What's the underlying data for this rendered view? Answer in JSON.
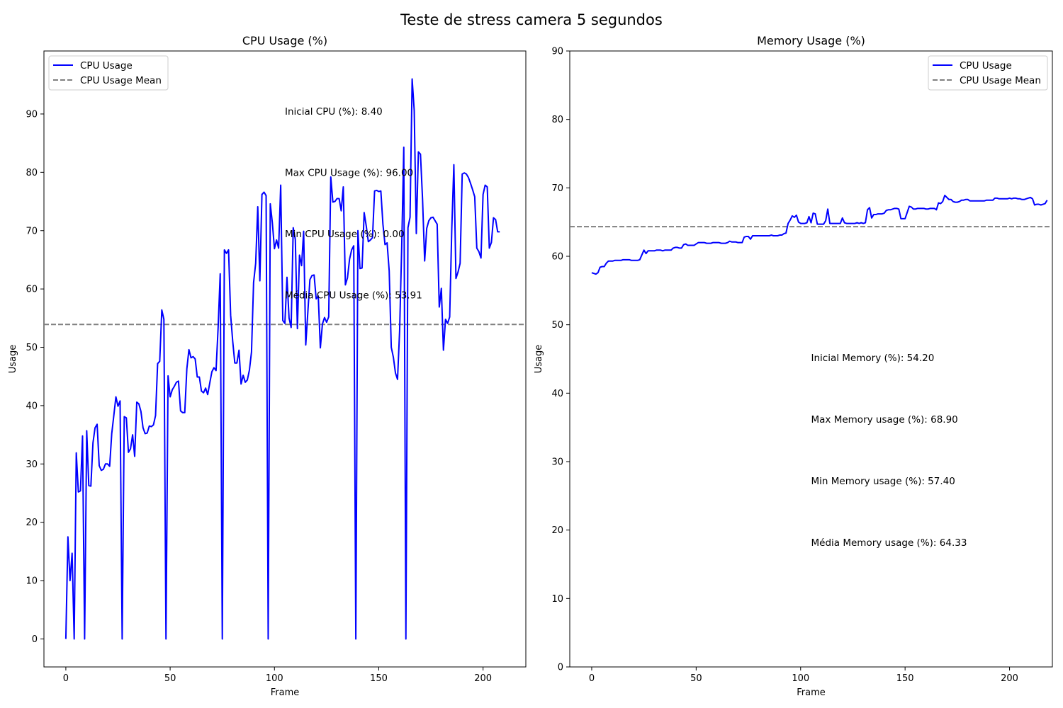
{
  "figure": {
    "title": "Teste de stress camera 5 segundos"
  },
  "colors": {
    "series": "#0000ff",
    "mean": "#808080"
  },
  "chart_data": [
    {
      "type": "line",
      "title": "CPU Usage (%)",
      "xlabel": "Frame",
      "ylabel": "Usage",
      "xlim": [
        -10.5,
        220.5
      ],
      "ylim": [
        -4.8,
        100.8
      ],
      "xticks": [
        0,
        50,
        100,
        150,
        200
      ],
      "yticks": [
        0,
        10,
        20,
        30,
        40,
        50,
        60,
        70,
        80,
        90
      ],
      "legend_position": "upper-left",
      "mean_line": {
        "name": "CPU Usage Mean",
        "value": 53.91
      },
      "series": [
        {
          "name": "CPU Usage",
          "values": [
            0,
            17.5,
            10,
            14.7,
            0,
            31.9,
            25.2,
            25.4,
            34.8,
            0,
            35.7,
            26.3,
            26.2,
            33.6,
            36.2,
            36.8,
            29.7,
            28.9,
            29.1,
            30.0,
            30.0,
            29.6,
            35.2,
            38.3,
            41.5,
            39.9,
            40.8,
            0,
            38.1,
            37.9,
            32.0,
            32.6,
            35.0,
            31.3,
            40.6,
            40.3,
            39.0,
            36.2,
            35.2,
            35.3,
            36.5,
            36.4,
            36.7,
            38.3,
            47.2,
            47.6,
            56.4,
            54.8,
            0,
            45.1,
            41.5,
            42.7,
            43.3,
            44.0,
            44.2,
            39.1,
            38.8,
            38.8,
            46.3,
            49.6,
            48.2,
            48.4,
            48.0,
            44.9,
            44.9,
            42.5,
            42.2,
            43.0,
            41.9,
            43.9,
            45.8,
            46.5,
            46.0,
            53.4,
            62.6,
            0,
            66.7,
            66.1,
            66.7,
            55.5,
            51.0,
            47.3,
            47.3,
            49.5,
            43.7,
            45.2,
            44.0,
            44.4,
            46.1,
            49.2,
            61.1,
            64.4,
            74.1,
            61.4,
            76.2,
            76.6,
            76.0,
            0,
            74.6,
            71.3,
            66.9,
            68.4,
            67.0,
            77.8,
            54.6,
            54.1,
            62.0,
            55.0,
            53.4,
            70.5,
            68.5,
            53.2,
            65.8,
            64.0,
            69.9,
            50.4,
            56.0,
            61.6,
            62.3,
            62.4,
            58.3,
            58.8,
            49.9,
            54.0,
            55.1,
            54.3,
            55.2,
            79.2,
            74.9,
            75.0,
            75.5,
            75.5,
            73.4,
            77.5,
            60.7,
            61.9,
            65.1,
            66.7,
            67.4,
            0,
            70.0,
            63.5,
            63.6,
            73.1,
            70.8,
            68.1,
            68.4,
            68.8,
            76.8,
            76.9,
            76.7,
            76.8,
            71.1,
            67.6,
            67.9,
            63.1,
            50.0,
            48.3,
            45.6,
            44.5,
            52.8,
            67.2,
            84.3,
            0,
            70.5,
            72.3,
            96.0,
            90.6,
            69.5,
            83.5,
            83.1,
            75.3,
            64.8,
            70.4,
            71.7,
            72.2,
            72.3,
            71.7,
            71.1,
            56.9,
            60.1,
            49.5,
            54.8,
            54.1,
            55.2,
            70.3,
            81.3,
            61.8,
            62.9,
            64.4,
            79.7,
            79.9,
            79.7,
            79.1,
            78.1,
            77.0,
            75.8,
            67.0,
            66.4,
            65.3,
            76.2,
            77.8,
            77.5,
            67.0,
            68.0,
            72.2,
            71.9,
            69.8,
            69.8
          ]
        }
      ],
      "annotations": [
        {
          "text": "Inicial CPU (%): 8.40",
          "x": 105,
          "y": 90.5
        },
        {
          "text": "Max CPU Usage (%): 96.00",
          "x": 105,
          "y": 80.0
        },
        {
          "text": "Min CPU Usage (%): 0.00",
          "x": 105,
          "y": 69.5
        },
        {
          "text": "Média CPU Usage (%): 53.91",
          "x": 105,
          "y": 59.0
        }
      ]
    },
    {
      "type": "line",
      "title": "Memory Usage (%)",
      "xlabel": "Frame",
      "ylabel": "Usage",
      "xlim": [
        -10.5,
        220.5
      ],
      "ylim": [
        0,
        90
      ],
      "xticks": [
        0,
        50,
        100,
        150,
        200
      ],
      "yticks": [
        0,
        10,
        20,
        30,
        40,
        50,
        60,
        70,
        80,
        90
      ],
      "legend_position": "upper-right",
      "mean_line": {
        "name": "CPU Usage Mean",
        "value": 64.33
      },
      "series": [
        {
          "name": "CPU Usage",
          "values": [
            57.6,
            57.5,
            57.4,
            57.6,
            58.4,
            58.5,
            58.5,
            59.0,
            59.3,
            59.3,
            59.3,
            59.4,
            59.4,
            59.4,
            59.4,
            59.5,
            59.5,
            59.5,
            59.5,
            59.4,
            59.4,
            59.4,
            59.4,
            59.5,
            60.2,
            60.9,
            60.4,
            60.8,
            60.8,
            60.8,
            60.8,
            60.9,
            60.9,
            60.9,
            60.8,
            60.9,
            60.9,
            60.9,
            60.9,
            61.2,
            61.3,
            61.3,
            61.2,
            61.2,
            61.7,
            61.8,
            61.6,
            61.6,
            61.6,
            61.6,
            61.8,
            62.0,
            62.0,
            62.0,
            62.0,
            61.9,
            61.9,
            61.9,
            62.0,
            62.0,
            62.0,
            62.0,
            61.9,
            61.9,
            61.9,
            62.0,
            62.2,
            62.1,
            62.1,
            62.1,
            62.0,
            62.0,
            62.0,
            62.8,
            62.9,
            62.9,
            62.5,
            63.0,
            63.0,
            63.0,
            63.0,
            63.0,
            63.0,
            63.0,
            63.0,
            63.0,
            63.1,
            63.0,
            63.0,
            63.0,
            63.1,
            63.1,
            63.3,
            63.4,
            64.8,
            65.3,
            65.9,
            65.7,
            66.0,
            65.0,
            64.8,
            64.8,
            64.8,
            64.9,
            65.8,
            64.9,
            66.3,
            66.2,
            64.7,
            64.7,
            64.7,
            64.7,
            65.2,
            66.9,
            64.8,
            64.8,
            64.8,
            64.8,
            64.8,
            64.8,
            65.6,
            64.9,
            64.8,
            64.8,
            64.8,
            64.8,
            64.8,
            64.9,
            64.8,
            64.9,
            64.8,
            64.9,
            66.8,
            67.1,
            65.6,
            66.1,
            66.1,
            66.2,
            66.2,
            66.2,
            66.3,
            66.7,
            66.8,
            66.8,
            66.9,
            67.0,
            67.0,
            66.9,
            65.5,
            65.5,
            65.5,
            66.4,
            67.3,
            67.2,
            66.9,
            66.9,
            67.0,
            67.0,
            67.0,
            67.0,
            66.9,
            66.9,
            67.0,
            67.0,
            67.0,
            66.8,
            67.8,
            67.7,
            68.0,
            68.9,
            68.6,
            68.3,
            68.3,
            68.0,
            67.9,
            67.9,
            68.0,
            68.2,
            68.2,
            68.3,
            68.3,
            68.1,
            68.1,
            68.1,
            68.1,
            68.1,
            68.1,
            68.1,
            68.1,
            68.2,
            68.2,
            68.2,
            68.2,
            68.5,
            68.5,
            68.4,
            68.4,
            68.4,
            68.4,
            68.4,
            68.5,
            68.4,
            68.5,
            68.5,
            68.4,
            68.4,
            68.3,
            68.3,
            68.4,
            68.5,
            68.6,
            68.4,
            67.5,
            67.6,
            67.6,
            67.5,
            67.6,
            67.7,
            68.2
          ]
        }
      ],
      "annotations": [
        {
          "text": "Inicial Memory (%): 54.20",
          "x": 105,
          "y": 45.2
        },
        {
          "text": "Max Memory usage (%): 68.90",
          "x": 105,
          "y": 36.2
        },
        {
          "text": "Min Memory usage (%): 57.40",
          "x": 105,
          "y": 27.2
        },
        {
          "text": "Média Memory usage (%): 64.33",
          "x": 105,
          "y": 18.2
        }
      ]
    }
  ]
}
